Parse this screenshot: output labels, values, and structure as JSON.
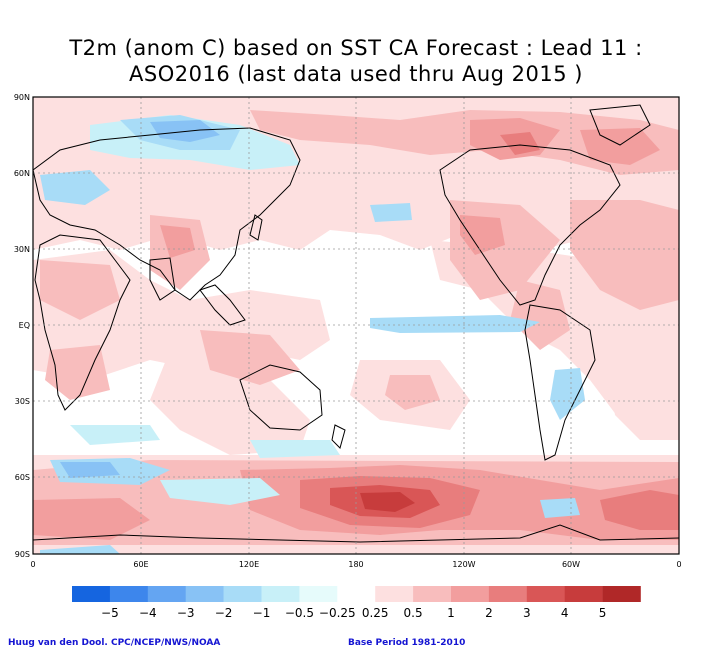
{
  "title_line1": "T2m (anom C) based on SST CA Forecast : Lead 11 :",
  "title_line2": "ASO2016 (last data used thru Aug 2015 )",
  "lat_labels": [
    "90N",
    "60N",
    "30N",
    "EQ",
    "30S",
    "60S",
    "90S"
  ],
  "lon_labels": [
    "0",
    "60E",
    "120E",
    "180",
    "120W",
    "60W",
    "0"
  ],
  "colorbar": {
    "labels": [
      "−5",
      "−4",
      "−3",
      "−2",
      "−1",
      "−0.5",
      "−0.25",
      "0.25",
      "0.5",
      "1",
      "2",
      "3",
      "4",
      "5"
    ],
    "colors": [
      "#1565e0",
      "#3d86ec",
      "#64a5f2",
      "#88c2f5",
      "#a8dcf7",
      "#c8f0f8",
      "#e6fbfb",
      "#ffffff",
      "#fde0e0",
      "#f8bdbd",
      "#f29e9e",
      "#e87d7d",
      "#d95656",
      "#c73c3c",
      "#b02828"
    ]
  },
  "footer_left": "Huug van den Dool. CPC/NCEP/NWS/NOAA",
  "footer_right": "Base Period 1981-2010"
}
